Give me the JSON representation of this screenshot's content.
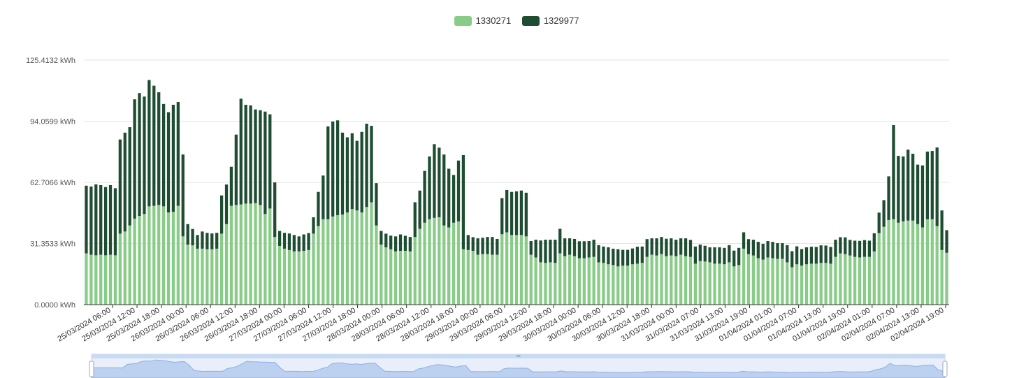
{
  "legend": {
    "items": [
      {
        "label": "1330271",
        "color": "#88cc88"
      },
      {
        "label": "1329977",
        "color": "#1e4d32"
      }
    ]
  },
  "chart_data": {
    "type": "bar",
    "stacked": true,
    "y_unit": "kWh",
    "ylim": [
      0,
      125.4132
    ],
    "y_ticks": [
      "0.0000 kWh",
      "31.3533 kWh",
      "62.7066 kWh",
      "94.0599 kWh",
      "125.4132 kWh"
    ],
    "x_tick_labels": [
      "25/03/2024 06:00",
      "25/03/2024 12:00",
      "25/03/2024 18:00",
      "26/03/2024 00:00",
      "26/03/2024 06:00",
      "26/03/2024 12:00",
      "26/03/2024 18:00",
      "27/03/2024 00:00",
      "27/03/2024 06:00",
      "27/03/2024 12:00",
      "27/03/2024 18:00",
      "28/03/2024 00:00",
      "28/03/2024 06:00",
      "28/03/2024 12:00",
      "28/03/2024 18:00",
      "29/03/2024 00:00",
      "29/03/2024 06:00",
      "29/03/2024 12:00",
      "29/03/2024 18:00",
      "30/03/2024 00:00",
      "30/03/2024 06:00",
      "30/03/2024 12:00",
      "30/03/2024 18:00",
      "31/03/2024 00:00",
      "31/03/2024 07:00",
      "31/03/2024 13:00",
      "31/03/2024 19:00",
      "01/04/2024 01:00",
      "01/04/2024 07:00",
      "01/04/2024 13:00",
      "01/04/2024 19:00",
      "02/04/2024 01:00",
      "02/04/2024 07:00",
      "02/04/2024 13:00",
      "02/04/2024 19:00"
    ],
    "grid": true,
    "legend_position": "top-center",
    "data_zoom": true,
    "series": [
      {
        "name": "1330271",
        "color": "#88cc88",
        "values": [
          26.3,
          25.6,
          25.3,
          25.6,
          25.3,
          25.6,
          25.3,
          36.4,
          37.5,
          40.6,
          44.1,
          45.5,
          46.5,
          50.4,
          50.7,
          51.1,
          50.4,
          47.3,
          47.6,
          50.7,
          35.0,
          30.8,
          30.4,
          28.7,
          28.7,
          28.4,
          28.4,
          28.7,
          36.4,
          41.3,
          50.7,
          51.1,
          51.4,
          51.8,
          51.8,
          52.1,
          51.1,
          46.5,
          49.3,
          34.7,
          30.1,
          28.7,
          28.0,
          27.3,
          27.3,
          27.6,
          28.0,
          36.4,
          40.3,
          43.8,
          43.8,
          45.2,
          45.9,
          46.2,
          47.3,
          49.0,
          48.3,
          47.3,
          50.1,
          52.5,
          40.6,
          30.8,
          29.4,
          28.4,
          27.3,
          27.6,
          27.6,
          27.3,
          34.7,
          38.9,
          42.0,
          43.8,
          44.5,
          44.8,
          40.6,
          39.6,
          42.0,
          42.7,
          28.4,
          28.0,
          27.6,
          25.6,
          25.9,
          25.9,
          25.6,
          25.6,
          36.1,
          37.1,
          35.7,
          35.7,
          35.7,
          35.0,
          25.6,
          24.2,
          21.7,
          21.4,
          21.7,
          21.4,
          26.3,
          24.9,
          25.6,
          24.9,
          23.8,
          23.8,
          24.2,
          24.5,
          21.7,
          21.4,
          20.7,
          20.3,
          19.6,
          20.0,
          20.0,
          20.7,
          21.0,
          21.4,
          24.5,
          25.6,
          25.2,
          25.9,
          24.9,
          25.2,
          24.9,
          25.6,
          24.9,
          24.5,
          21.0,
          22.4,
          22.1,
          21.7,
          21.0,
          21.0,
          20.7,
          21.7,
          19.6,
          20.3,
          28.7,
          25.9,
          25.2,
          23.8,
          23.1,
          24.2,
          23.8,
          23.5,
          23.5,
          21.7,
          19.2,
          20.7,
          20.0,
          20.7,
          21.0,
          21.0,
          21.4,
          21.4,
          21.0,
          24.5,
          26.3,
          25.9,
          25.2,
          24.5,
          24.2,
          24.5,
          24.5,
          27.3,
          36.7,
          39.9,
          43.4,
          43.8,
          42.0,
          42.7,
          43.1,
          43.1,
          41.3,
          39.6,
          43.8,
          43.8,
          40.3,
          28.0,
          26.6
        ]
      },
      {
        "name": "1329977",
        "color": "#1e4d32",
        "values": [
          34.7,
          35.0,
          36.4,
          35.7,
          35.0,
          35.7,
          34.4,
          48.3,
          50.7,
          50.4,
          61.2,
          63.0,
          60.2,
          64.8,
          61.6,
          57.8,
          52.5,
          51.4,
          54.9,
          53.2,
          42.0,
          10.5,
          8.4,
          7.0,
          8.8,
          8.4,
          8.1,
          8.1,
          19.6,
          20.3,
          20.0,
          36.1,
          54.2,
          50.7,
          50.4,
          48.0,
          48.6,
          52.5,
          48.3,
          28.0,
          7.7,
          8.1,
          8.5,
          8.4,
          7.7,
          8.4,
          8.7,
          8.4,
          17.5,
          22.4,
          47.6,
          48.7,
          48.6,
          42.0,
          38.5,
          38.9,
          35.7,
          41.3,
          42.7,
          39.2,
          21.7,
          7.0,
          7.0,
          7.0,
          7.7,
          8.4,
          7.7,
          7.4,
          17.8,
          19.6,
          26.6,
          32.2,
          37.8,
          35.7,
          36.4,
          30.1,
          24.5,
          31.2,
          48.3,
          7.7,
          7.0,
          8.4,
          8.4,
          8.8,
          9.1,
          8.1,
          18.5,
          21.7,
          22.1,
          22.4,
          22.8,
          22.4,
          7.0,
          9.1,
          11.2,
          11.9,
          11.6,
          11.9,
          12.6,
          9.1,
          8.4,
          8.8,
          8.7,
          8.7,
          8.4,
          8.8,
          8.8,
          8.4,
          8.7,
          8.4,
          8.8,
          8.1,
          8.1,
          8.1,
          8.7,
          8.4,
          9.1,
          8.4,
          8.8,
          8.8,
          8.9,
          8.8,
          8.4,
          8.4,
          9.1,
          8.7,
          8.8,
          8.4,
          8.1,
          7.7,
          8.4,
          8.4,
          8.4,
          8.8,
          8.1,
          8.8,
          8.4,
          7.7,
          8.1,
          8.4,
          8.1,
          8.4,
          8.4,
          8.0,
          8.0,
          8.8,
          8.2,
          9.2,
          8.5,
          8.7,
          8.7,
          8.6,
          9.0,
          8.9,
          8.6,
          8.8,
          8.3,
          8.6,
          8.0,
          8.3,
          8.5,
          8.6,
          8.3,
          9.3,
          10.5,
          13.7,
          22.4,
          48.3,
          34.3,
          33.3,
          36.4,
          34.3,
          30.5,
          31.8,
          34.7,
          35.0,
          40.3,
          20.3,
          11.6,
          8.8
        ]
      }
    ]
  }
}
